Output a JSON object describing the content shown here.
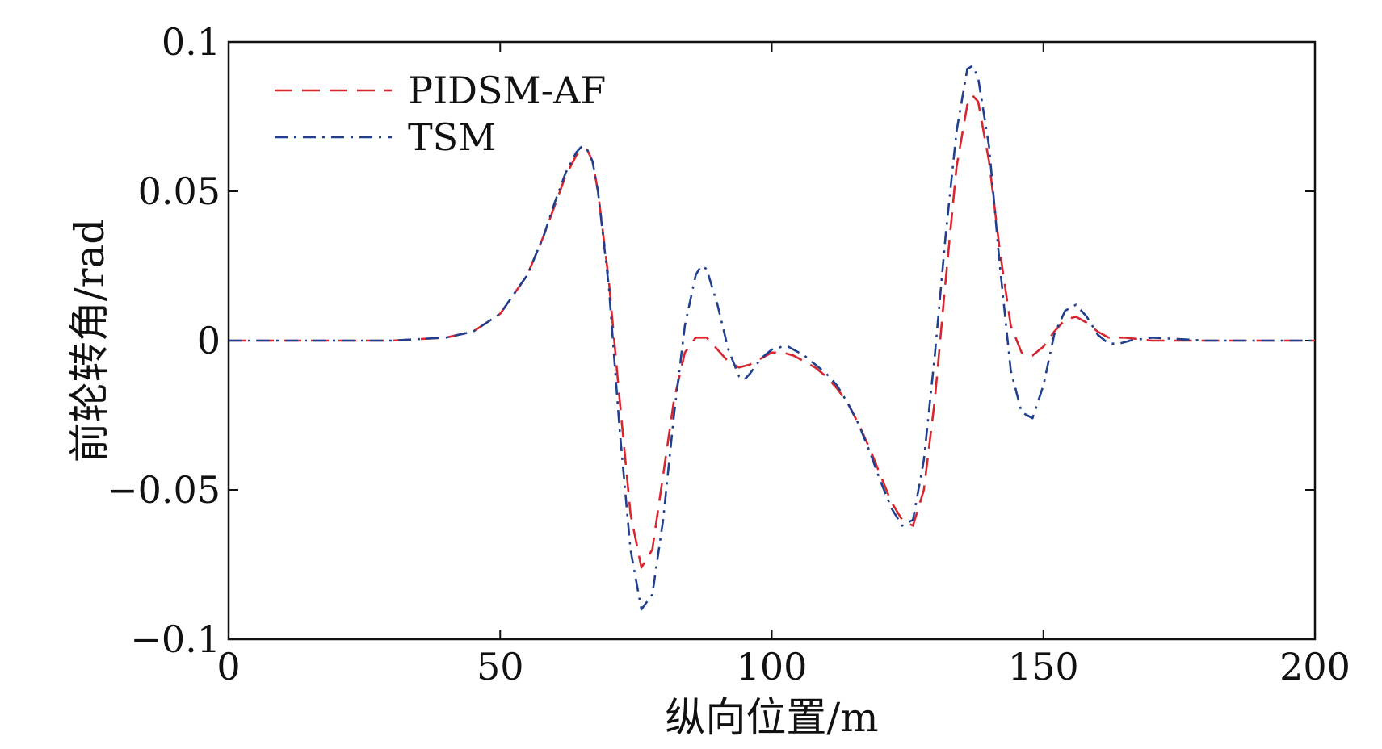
{
  "chart_data": {
    "type": "line",
    "title": "",
    "xlabel": "纵向位置/m",
    "ylabel": "前轮转角/rad",
    "xlim": [
      0,
      200
    ],
    "ylim": [
      -0.1,
      0.1
    ],
    "xticks": [
      0,
      50,
      100,
      150,
      200
    ],
    "xtick_labels": [
      "0",
      "50",
      "100",
      "150",
      "200"
    ],
    "yticks": [
      -0.1,
      -0.05,
      0,
      0.05,
      0.1
    ],
    "ytick_labels": [
      "−0.1",
      "−0.05",
      "0",
      "0.05",
      "0.1"
    ],
    "grid": false,
    "legend_position": "top-left",
    "series": [
      {
        "name": "PIDSM-AF",
        "color": "#d7262f",
        "style": "dashed",
        "x": [
          0,
          30,
          40,
          45,
          50,
          55,
          58,
          60,
          62,
          64,
          65,
          66,
          67,
          68,
          70,
          72,
          74,
          76,
          78,
          80,
          82,
          84,
          86,
          88,
          90,
          92,
          94,
          96,
          98,
          100,
          102,
          104,
          106,
          108,
          110,
          112,
          114,
          116,
          118,
          120,
          122,
          124,
          126,
          128,
          130,
          132,
          134,
          136,
          137,
          138,
          140,
          142,
          144,
          146,
          148,
          150,
          152,
          154,
          156,
          158,
          160,
          162,
          165,
          170,
          180,
          200
        ],
        "y": [
          0,
          0,
          0.001,
          0.003,
          0.009,
          0.022,
          0.035,
          0.045,
          0.055,
          0.062,
          0.064,
          0.064,
          0.06,
          0.05,
          0.02,
          -0.02,
          -0.058,
          -0.076,
          -0.07,
          -0.045,
          -0.02,
          -0.004,
          0.001,
          0.001,
          -0.003,
          -0.007,
          -0.009,
          -0.008,
          -0.006,
          -0.004,
          -0.004,
          -0.005,
          -0.007,
          -0.009,
          -0.012,
          -0.016,
          -0.021,
          -0.028,
          -0.036,
          -0.045,
          -0.054,
          -0.06,
          -0.062,
          -0.05,
          -0.02,
          0.02,
          0.058,
          0.079,
          0.082,
          0.08,
          0.06,
          0.03,
          0.005,
          -0.004,
          -0.005,
          -0.002,
          0.003,
          0.007,
          0.008,
          0.006,
          0.003,
          0.001,
          0.001,
          0,
          0,
          0
        ]
      },
      {
        "name": "TSM",
        "color": "#1f3f8f",
        "style": "dashdot",
        "x": [
          0,
          30,
          40,
          45,
          50,
          55,
          58,
          60,
          62,
          64,
          65,
          66,
          67,
          68,
          70,
          72,
          74,
          76,
          78,
          80,
          82,
          84,
          86,
          87,
          88,
          90,
          92,
          94,
          95,
          96,
          98,
          100,
          102,
          103,
          104,
          106,
          108,
          110,
          112,
          114,
          116,
          118,
          120,
          122,
          124,
          126,
          128,
          130,
          132,
          134,
          136,
          137,
          138,
          140,
          142,
          144,
          146,
          148,
          150,
          152,
          154,
          156,
          158,
          160,
          162,
          164,
          166,
          170,
          180,
          200
        ],
        "y": [
          0,
          0,
          0.001,
          0.003,
          0.009,
          0.022,
          0.035,
          0.046,
          0.056,
          0.063,
          0.065,
          0.064,
          0.06,
          0.05,
          0.018,
          -0.03,
          -0.07,
          -0.09,
          -0.085,
          -0.06,
          -0.025,
          0.005,
          0.022,
          0.025,
          0.024,
          0.012,
          -0.003,
          -0.012,
          -0.013,
          -0.011,
          -0.006,
          -0.003,
          -0.002,
          -0.002,
          -0.003,
          -0.005,
          -0.008,
          -0.011,
          -0.015,
          -0.021,
          -0.028,
          -0.037,
          -0.047,
          -0.056,
          -0.062,
          -0.06,
          -0.04,
          -0.005,
          0.035,
          0.07,
          0.091,
          0.092,
          0.088,
          0.065,
          0.025,
          -0.01,
          -0.024,
          -0.026,
          -0.015,
          0.002,
          0.01,
          0.012,
          0.008,
          0.002,
          -0.001,
          -0.001,
          0,
          0.001,
          0,
          0
        ]
      }
    ]
  }
}
